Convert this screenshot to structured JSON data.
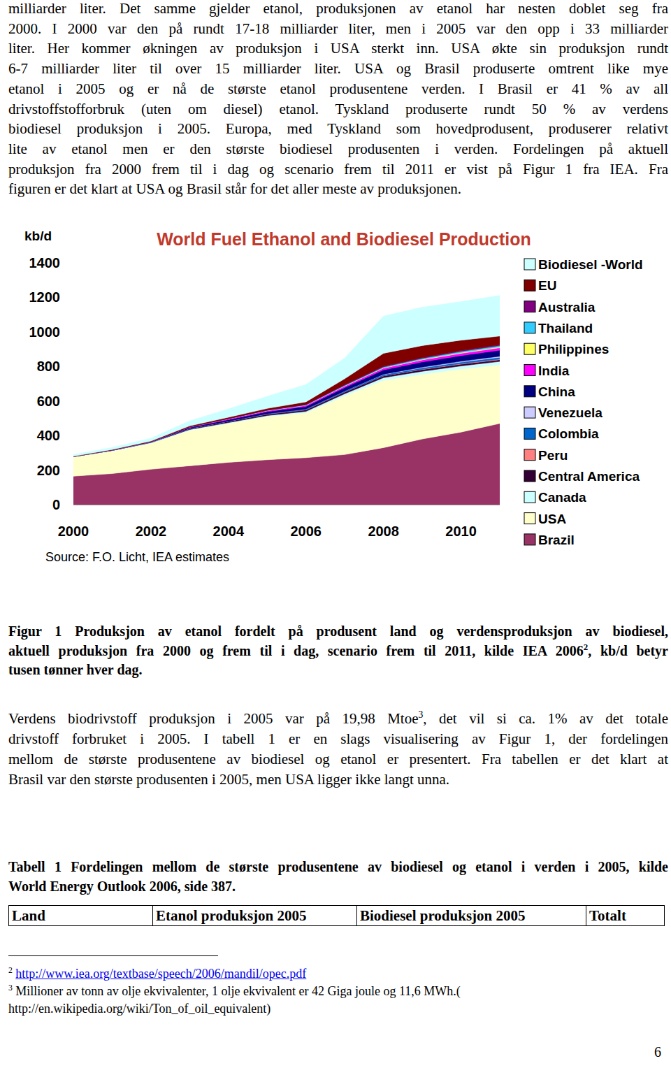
{
  "document": {
    "intro": {
      "lines": [
        [
          "milliarder liter. Det samme gjelder etanol, produksjonen av etanol har nesten doblet seg fra"
        ],
        [
          "2000. I 2000 var den på rundt 17-18 milliarder liter, men i 2005 var den opp i 33 milliarder"
        ],
        [
          "liter. Her kommer økningen av produksjon i USA sterkt inn. USA økte sin produksjon rundt"
        ],
        [
          "6-7 milliarder liter til over 15 milliarder liter. USA og Brasil produserte omtrent like mye"
        ],
        [
          "etanol i 2005 og er nå de største etanol produsentene verden. I Brasil er 41 % av all"
        ],
        [
          "drivstoffstofforbruk (uten om diesel) etanol. Tyskland produserte rundt 50 % av verdens"
        ],
        [
          "biodiesel produksjon i 2005. Europa, med Tyskland som hovedprodusent, produserer relativt"
        ],
        [
          "lite av etanol men er den største biodiesel produsenten i verden. Fordelingen på aktuell"
        ],
        [
          "produksjon fra 2000 frem til i dag og scenario frem til 2011 er vist på Figur 1 fra IEA. Fra"
        ],
        [
          "figuren er det klart at USA og Brasil står for det aller meste av produksjonen."
        ]
      ]
    },
    "figure_caption": {
      "lines": [
        [
          "Figur 1 Produksjon av etanol fordelt på produsent land og verdensproduksjon av biodiesel,"
        ],
        [
          "aktuell produksjon fra 2000 og frem til i dag, scenario frem til 2011, kilde IEA 2006",
          {
            "sup": "2"
          },
          ", kb/d betyr"
        ],
        [
          "tusen tønner hver dag."
        ]
      ]
    },
    "paragraph": {
      "lines": [
        [
          "Verdens biodrivstoff produksjon i 2005 var på 19,98 Mtoe",
          {
            "sup": "3"
          },
          ", det vil si ca. 1% av det totale"
        ],
        [
          "drivstoff forbruket i 2005. I tabell 1 er en slags visualisering av Figur 1, der fordelingen"
        ],
        [
          "mellom de største produsentene av biodiesel og etanol er presentert. Fra tabellen er det klart at"
        ],
        [
          "Brasil var den største produsenten i 2005, men USA ligger ikke langt unna."
        ]
      ]
    },
    "table_caption": {
      "lines": [
        [
          "Tabell 1 Fordelingen mellom de største produsentene av biodiesel og etanol i verden i 2005, kilde"
        ],
        [
          "World Energy Outlook 2006, side 387."
        ]
      ]
    },
    "table": {
      "header": [
        "Land",
        "Etanol produksjon 2005",
        "Biodiesel produksjon 2005",
        "Totalt"
      ]
    },
    "footnotes": [
      {
        "mark": "2",
        "url": "http://www.iea.org/textbase/speech/2006/mandil/opec.pdf"
      },
      {
        "mark": "3",
        "lines": [
          "Millioner av tonn av olje ekvivalenter, 1 olje ekvivalent er 42 Giga joule og 11,6 MWh.(",
          "http://en.wikipedia.org/wiki/Ton_of_oil_equivalent)"
        ]
      }
    ],
    "page_number": "6"
  },
  "chart_data": {
    "type": "area",
    "stacked": true,
    "title": "World Fuel Ethanol and Biodiesel Production",
    "ylabel": "kb/d",
    "source": "Source: F.O. Licht, IEA estimates",
    "legend": "right",
    "grid": false,
    "x": [
      2000,
      2001,
      2002,
      2003,
      2004,
      2005,
      2006,
      2007,
      2008,
      2009,
      2010,
      2011
    ],
    "xlim": [
      2000,
      2011
    ],
    "xticks": [
      2000,
      2002,
      2004,
      2006,
      2008,
      2010
    ],
    "ylim": [
      0,
      1400
    ],
    "yticks": [
      0,
      200,
      400,
      600,
      800,
      1000,
      1200,
      1400
    ],
    "series": [
      {
        "name": "Brazil",
        "color": "#993366",
        "values": [
          165,
          180,
          205,
          225,
          245,
          260,
          272,
          290,
          330,
          380,
          420,
          470
        ]
      },
      {
        "name": "USA",
        "color": "#ffffcc",
        "values": [
          110,
          130,
          150,
          205,
          225,
          250,
          260,
          340,
          390,
          375,
          365,
          340
        ]
      },
      {
        "name": "Canada",
        "color": "#ccffff",
        "values": [
          3,
          4,
          4,
          5,
          5,
          6,
          8,
          12,
          15,
          17,
          18,
          19
        ]
      },
      {
        "name": "Central America",
        "color": "#330033",
        "values": [
          0,
          0,
          2,
          6,
          8,
          8,
          9,
          10,
          10,
          10,
          10,
          10
        ]
      },
      {
        "name": "Peru",
        "color": "#ff8080",
        "values": [
          0,
          0,
          0,
          0,
          0,
          0,
          0,
          0,
          1,
          2,
          3,
          4
        ]
      },
      {
        "name": "Colombia",
        "color": "#0066cc",
        "values": [
          0,
          0,
          0,
          0,
          0,
          2,
          4,
          6,
          7,
          8,
          9,
          10
        ]
      },
      {
        "name": "Venezuela",
        "color": "#ccccff",
        "values": [
          0,
          0,
          0,
          0,
          0,
          0,
          0,
          0,
          2,
          4,
          5,
          6
        ]
      },
      {
        "name": "China",
        "color": "#000080",
        "values": [
          0,
          2,
          3,
          6,
          9,
          12,
          15,
          20,
          25,
          30,
          33,
          35
        ]
      },
      {
        "name": "India",
        "color": "#ff00ff",
        "values": [
          0,
          0,
          0,
          3,
          5,
          6,
          7,
          8,
          10,
          12,
          13,
          14
        ]
      },
      {
        "name": "Philippines",
        "color": "#ffff66",
        "values": [
          0,
          0,
          0,
          0,
          0,
          0,
          0,
          1,
          2,
          3,
          4,
          5
        ]
      },
      {
        "name": "Thailand",
        "color": "#33ccff",
        "values": [
          0,
          0,
          0,
          0,
          1,
          2,
          3,
          4,
          5,
          6,
          7,
          8
        ]
      },
      {
        "name": "Australia",
        "color": "#800080",
        "values": [
          0,
          0,
          0,
          0,
          0,
          1,
          2,
          3,
          4,
          4,
          5,
          5
        ]
      },
      {
        "name": "EU",
        "color": "#800000",
        "values": [
          2,
          3,
          4,
          6,
          8,
          10,
          15,
          35,
          75,
          70,
          60,
          50
        ]
      },
      {
        "name": "Biodiesel -World",
        "color": "#ccffff",
        "values": [
          10,
          12,
          16,
          29,
          48,
          70,
          100,
          120,
          215,
          222,
          223,
          235
        ]
      }
    ]
  }
}
